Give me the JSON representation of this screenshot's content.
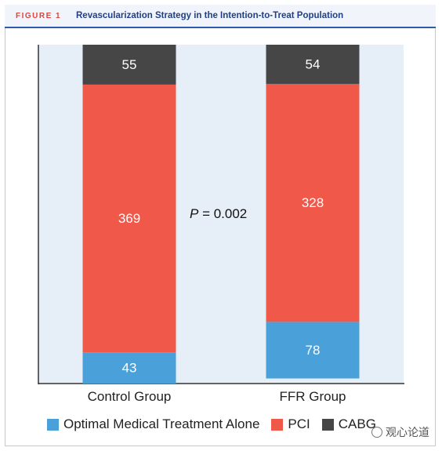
{
  "figure": {
    "label": "FIGURE 1",
    "title": "Revascularization Strategy in the Intention-to-Treat Population"
  },
  "colors": {
    "omt": "#4aa0d9",
    "pci": "#f0584a",
    "cabg": "#464646",
    "plot_bg": "#e6eef8",
    "title": "#1f3f88",
    "label": "#e3453a"
  },
  "chart_data": {
    "type": "bar",
    "stacked": true,
    "categories": [
      "Control Group",
      "FFR Group"
    ],
    "series": [
      {
        "name": "Optimal Medical Treatment Alone",
        "values": [
          43,
          78
        ],
        "color_key": "omt"
      },
      {
        "name": "PCI",
        "values": [
          369,
          328
        ],
        "color_key": "pci"
      },
      {
        "name": "CABG",
        "values": [
          55,
          54
        ],
        "color_key": "cabg"
      }
    ],
    "annotation": {
      "prefix": "P",
      "text": " = 0.002"
    },
    "ylim": [
      0,
      467
    ],
    "legend_position": "bottom",
    "grid": false
  },
  "watermark": {
    "text": "观心论道"
  }
}
